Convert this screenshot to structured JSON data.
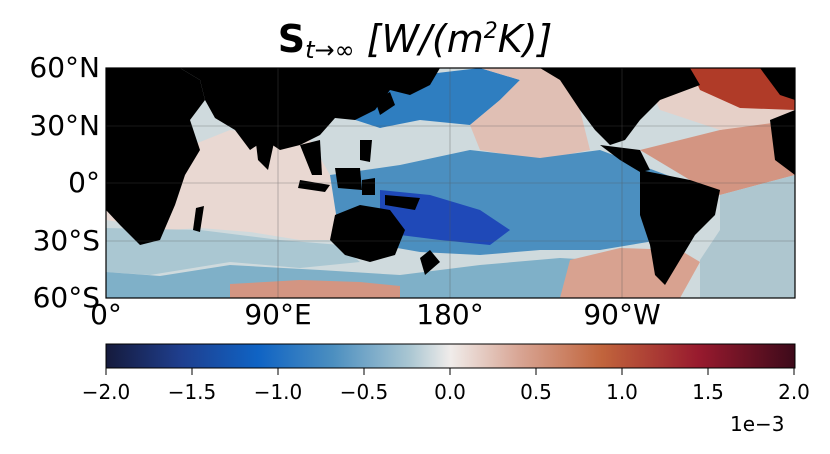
{
  "title": {
    "symbol": "S",
    "subscript": "t→∞",
    "unit_open": "[W/(m",
    "unit_sup": "2",
    "unit_close": "K)]"
  },
  "map": {
    "lat_ticks": [
      "60°N",
      "30°N",
      "0°",
      "30°S",
      "60°S"
    ],
    "lon_ticks": [
      "0°",
      "90°E",
      "180°",
      "90°W"
    ],
    "colors": {
      "land": "#000000",
      "strong_blue": "#1f49b8",
      "mid_blue": "#2f7ec0",
      "blue": "#4b8fc0",
      "light_blue": "#7fb0c8",
      "pale_blue": "#aac7d2",
      "grey_blue": "#cfdadd",
      "neutral": "#ebe3e0",
      "pale_red": "#e9d2cb",
      "light_red": "#ddb1a3",
      "salmon": "#d39582",
      "red": "#b03b28"
    }
  },
  "colorbar": {
    "ticks": [
      "−2.0",
      "−1.5",
      "−1.0",
      "−0.5",
      "0.0",
      "0.5",
      "1.0",
      "1.5",
      "2.0"
    ],
    "scale": "1e−3",
    "min": -2.0,
    "max": 2.0,
    "stops": [
      "#151a3c",
      "#1f3f8f",
      "#0f63c4",
      "#4c8fc0",
      "#a9c6d2",
      "#f0ecea",
      "#d8a594",
      "#c1643c",
      "#981a2e",
      "#3d0a1a"
    ]
  }
}
